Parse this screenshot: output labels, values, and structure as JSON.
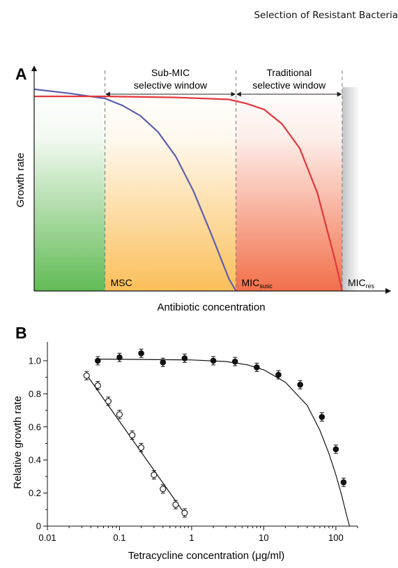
{
  "header": {
    "text": "Selection of Resistant Bacteria"
  },
  "chart_data": [
    {
      "panel": "A",
      "type": "line",
      "xlabel": "Antibiotic concentration",
      "ylabel": "Growth rate",
      "xlim": [
        0,
        100
      ],
      "ylim": [
        0,
        1
      ],
      "series": [
        {
          "color": "#5b5fae",
          "x": [
            0,
            10,
            20,
            25,
            30,
            35,
            40,
            45,
            50,
            55,
            57
          ],
          "y": [
            0.99,
            0.97,
            0.945,
            0.91,
            0.86,
            0.78,
            0.66,
            0.49,
            0.28,
            0.06,
            0.0
          ]
        },
        {
          "color": "#e2363c",
          "x": [
            0,
            20,
            40,
            55,
            60,
            65,
            70,
            75,
            80,
            85,
            87
          ],
          "y": [
            0.955,
            0.955,
            0.95,
            0.94,
            0.92,
            0.89,
            0.82,
            0.7,
            0.48,
            0.15,
            0.0
          ]
        }
      ],
      "markers": [
        {
          "x": 20,
          "label": "MSC",
          "sub": ""
        },
        {
          "x": 57,
          "label": "MIC",
          "sub": "susc"
        },
        {
          "x": 87,
          "label": "MIC",
          "sub": "res"
        }
      ],
      "windows": [
        {
          "from": 20,
          "to": 57,
          "line1": "Sub-MIC",
          "line2": "selective window"
        },
        {
          "from": 57,
          "to": 87,
          "line1": "Traditional",
          "line2": "selective window"
        }
      ],
      "region_colors": {
        "green": "#62bb55",
        "orange": "#fbbf5a",
        "salmon": "#f2704a",
        "grey": "#c2c4c7"
      }
    },
    {
      "panel": "B",
      "type": "scatter",
      "xlabel": "Tetracycline concentration (μg/ml)",
      "ylabel": "Relative growth rate",
      "xscale": "log",
      "xlim": [
        0.01,
        200
      ],
      "ylim": [
        0,
        1.08
      ],
      "xticks": [
        "0.01",
        "0.1",
        "1",
        "10",
        "100"
      ],
      "yticks": [
        "0",
        "0.2",
        "0.4",
        "0.6",
        "0.8",
        "1.0"
      ],
      "series": [
        {
          "marker": "filled",
          "x": [
            0.05,
            0.1,
            0.2,
            0.4,
            0.8,
            2,
            4,
            8,
            16,
            32,
            64,
            100,
            128
          ],
          "y": [
            1.0,
            1.02,
            1.045,
            0.99,
            1.015,
            1.0,
            0.995,
            0.96,
            0.915,
            0.855,
            0.66,
            0.465,
            0.265
          ]
        },
        {
          "marker": "open",
          "x": [
            0.035,
            0.05,
            0.07,
            0.1,
            0.15,
            0.2,
            0.3,
            0.4,
            0.6,
            0.8
          ],
          "y": [
            0.91,
            0.85,
            0.755,
            0.675,
            0.55,
            0.475,
            0.31,
            0.225,
            0.13,
            0.08
          ]
        }
      ],
      "fits": [
        {
          "x": [
            0.05,
            1,
            3,
            6,
            10,
            20,
            40,
            60,
            80,
            100,
            120,
            140,
            155
          ],
          "y": [
            1.01,
            1.005,
            0.995,
            0.975,
            0.945,
            0.87,
            0.73,
            0.58,
            0.44,
            0.31,
            0.19,
            0.07,
            0.0
          ]
        },
        {
          "x": [
            0.035,
            0.8
          ],
          "y": [
            0.915,
            0.075
          ]
        }
      ]
    }
  ]
}
